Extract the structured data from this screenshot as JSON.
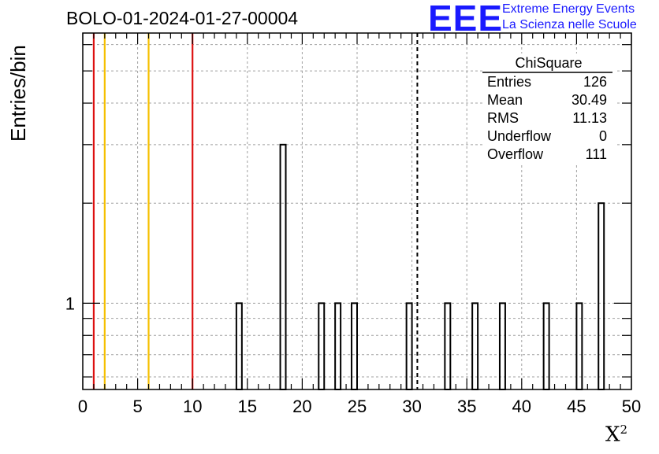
{
  "title": "BOLO-01-2024-01-27-00004",
  "logo": {
    "mark": "EEE",
    "line1": "Extreme Energy Events",
    "line2": "La Scienza nelle Scuole"
  },
  "axes": {
    "ylabel": "Entries/bin",
    "xlabel_base": "X",
    "xlabel_sup": "2"
  },
  "stats": {
    "name": "ChiSquare",
    "rows": [
      {
        "label": "Entries",
        "value": "126"
      },
      {
        "label": "Mean",
        "value": "30.49"
      },
      {
        "label": "RMS",
        "value": "11.13"
      },
      {
        "label": "Underflow",
        "value": "0"
      },
      {
        "label": "Overflow",
        "value": "111"
      }
    ]
  },
  "colors": {
    "red_line": "#dd1111",
    "yellow_line": "#f5c000",
    "histogram": "#000000",
    "grid": "#a0a0a0",
    "logo": "#1a1aff"
  },
  "chart_data": {
    "type": "bar",
    "x_range": [
      0,
      50
    ],
    "y_scale": "log",
    "y_range": [
      0.55,
      6.5
    ],
    "y_tick_labels": [
      "1"
    ],
    "x_ticks": [
      0,
      5,
      10,
      15,
      20,
      25,
      30,
      35,
      40,
      45,
      50
    ],
    "grid": true,
    "bin_width": 0.5,
    "bins": [
      {
        "x": 14.0,
        "count": 1
      },
      {
        "x": 18.0,
        "count": 3
      },
      {
        "x": 21.5,
        "count": 1
      },
      {
        "x": 23.0,
        "count": 1
      },
      {
        "x": 24.5,
        "count": 1
      },
      {
        "x": 29.5,
        "count": 1
      },
      {
        "x": 33.0,
        "count": 1
      },
      {
        "x": 35.5,
        "count": 1
      },
      {
        "x": 38.0,
        "count": 1
      },
      {
        "x": 42.0,
        "count": 1
      },
      {
        "x": 45.0,
        "count": 1
      },
      {
        "x": 47.0,
        "count": 2
      }
    ],
    "vertical_lines": [
      {
        "x": 1.0,
        "color": "red"
      },
      {
        "x": 2.0,
        "color": "yellow"
      },
      {
        "x": 6.0,
        "color": "yellow"
      },
      {
        "x": 10.0,
        "color": "red"
      }
    ],
    "mean_line": {
      "x": 30.49,
      "style": "dashed"
    }
  }
}
